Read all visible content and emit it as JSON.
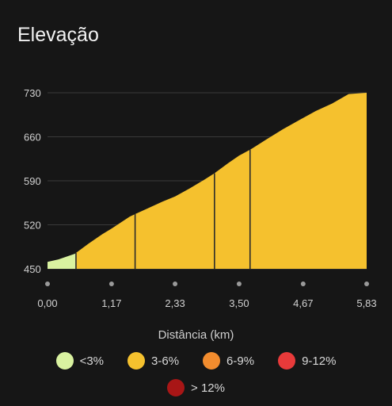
{
  "title": "Elevação",
  "chart_data": {
    "type": "area",
    "xlabel": "Distância (km)",
    "ylabel": "",
    "xlim": [
      0,
      5.83
    ],
    "ylim": [
      450,
      730
    ],
    "yticks": [
      "450",
      "520",
      "590",
      "660",
      "730"
    ],
    "ytick_values": [
      450,
      520,
      590,
      660,
      730
    ],
    "xticks": [
      "0,00",
      "1,17",
      "2,33",
      "3,50",
      "4,67",
      "5,83"
    ],
    "xtick_values": [
      0,
      1.17,
      2.33,
      3.5,
      4.67,
      5.83
    ],
    "grid": true,
    "profile": {
      "x": [
        0,
        0.2,
        0.5,
        0.75,
        1.0,
        1.17,
        1.5,
        1.8,
        2.1,
        2.33,
        2.6,
        2.85,
        3.05,
        3.3,
        3.5,
        3.75,
        4.0,
        4.3,
        4.67,
        4.9,
        5.2,
        5.5,
        5.83
      ],
      "y": [
        461,
        465,
        474,
        490,
        505,
        514,
        533,
        545,
        557,
        565,
        578,
        591,
        602,
        618,
        630,
        642,
        656,
        672,
        690,
        701,
        713,
        728,
        739
      ]
    },
    "segment_breaks_km": [
      0.52,
      1.6,
      3.05,
      3.7
    ],
    "segment_grades": [
      "<3%",
      "3-6%",
      "3-6%",
      "3-6%",
      "3-6%"
    ],
    "legend": [
      {
        "label": "<3%",
        "color": "#d9f2a0"
      },
      {
        "label": "3-6%",
        "color": "#f5c12e"
      },
      {
        "label": "6-9%",
        "color": "#f28c2e"
      },
      {
        "label": "9-12%",
        "color": "#e83a3a"
      },
      {
        "label": "> 12%",
        "color": "#a81616"
      }
    ],
    "legend_position": "bottom"
  },
  "colors": {
    "background": "#161616",
    "grid": "#3a3a3a",
    "tick_text": "#d0d0d0",
    "segment_divider": "#2a2a2a",
    "dot": "#9a9a9a"
  }
}
